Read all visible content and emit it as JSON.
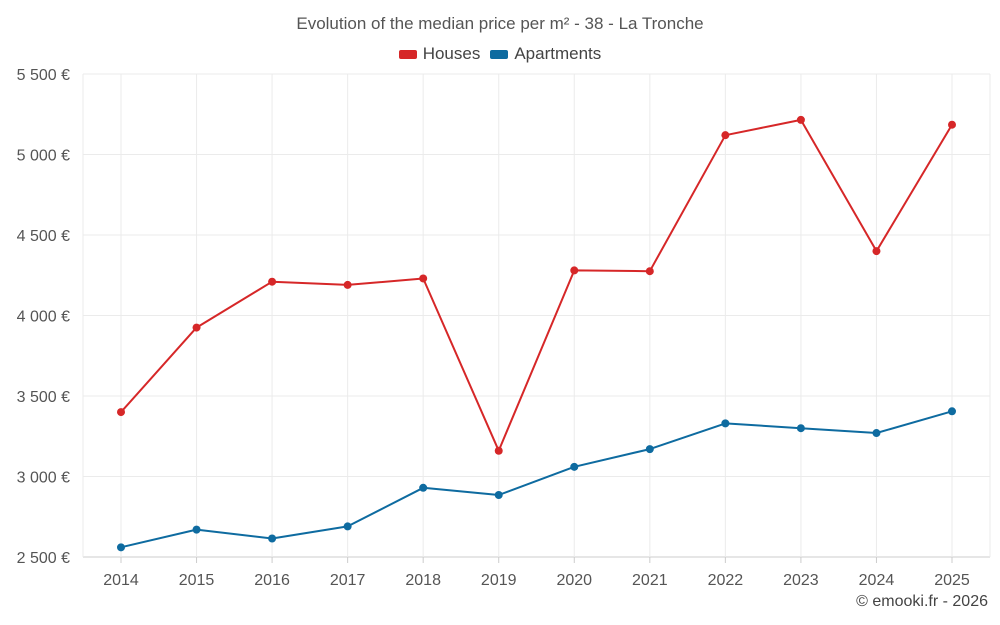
{
  "chart_data": {
    "type": "line",
    "title": "Evolution of the median price per m² - 38 - La Tronche",
    "categories": [
      "2014",
      "2015",
      "2016",
      "2017",
      "2018",
      "2019",
      "2020",
      "2021",
      "2022",
      "2023",
      "2024",
      "2025"
    ],
    "series": [
      {
        "name": "Houses",
        "color": "#d62728",
        "values": [
          3400,
          3925,
          4210,
          4190,
          4230,
          3160,
          4280,
          4275,
          5120,
          5215,
          4400,
          5185
        ]
      },
      {
        "name": "Apartments",
        "color": "#0e6ba0",
        "values": [
          2560,
          2670,
          2615,
          2690,
          2930,
          2885,
          3060,
          3170,
          3330,
          3300,
          3270,
          3405
        ]
      }
    ],
    "ylim": [
      2500,
      5500
    ],
    "y_ticks": [
      2500,
      3000,
      3500,
      4000,
      4500,
      5000,
      5500
    ],
    "y_tick_labels": [
      "2 500 €",
      "3 000 €",
      "3 500 €",
      "4 000 €",
      "4 500 €",
      "5 000 €",
      "5 500 €"
    ],
    "xlabel": "",
    "ylabel": "",
    "grid": true,
    "legend_position": "top-center"
  },
  "credit": "© emooki.fr - 2026"
}
